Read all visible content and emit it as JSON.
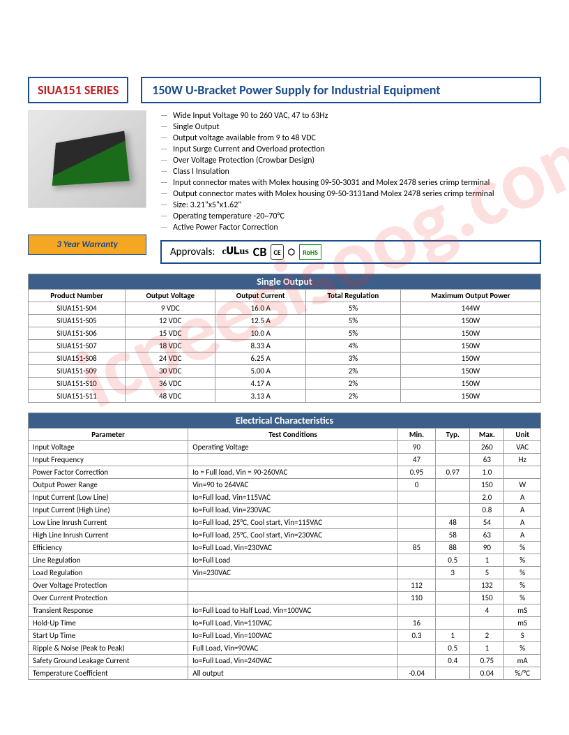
{
  "watermark": "icpeesisoog.com",
  "header": {
    "series": "SIUA151 SERIES",
    "title": "150W U-Bracket Power Supply for Industrial Equipment",
    "warranty": "3 Year Warranty",
    "approvals_label": "Approvals:",
    "certs": {
      "ul": "c𝐔𝐋us",
      "cb": "CB",
      "ce": "CE",
      "rohs": "RoHS"
    }
  },
  "features": [
    "Wide Input Voltage 90 to 260 VAC, 47 to 63Hz",
    "Single Output",
    "Output voltage available from 9 to 48 VDC",
    "Input Surge Current and Overload protection",
    "Over Voltage Protection (Crowbar Design)",
    "Class I Insulation",
    "Input connector mates with Molex housing 09-50-3031 and Molex 2478 series crimp terminal",
    "Output connector mates with Molex housing 09-50-3131and Molex 2478 series crimp terminal",
    "Size: 3.21\"x5\"x1.62\"",
    "Operating temperature -20~70°C",
    "Active Power Factor Correction"
  ],
  "single_output": {
    "title": "Single Output",
    "columns": [
      "Product Number",
      "Output Voltage",
      "Output Current",
      "Total Regulation",
      "Maximum Output Power"
    ],
    "rows": [
      [
        "SIUA151-S04",
        "9 VDC",
        "16.0 A",
        "5%",
        "144W"
      ],
      [
        "SIUA151-S05",
        "12 VDC",
        "12.5 A",
        "5%",
        "150W"
      ],
      [
        "SIUA151-S06",
        "15 VDC",
        "10.0 A",
        "5%",
        "150W"
      ],
      [
        "SIUA151-S07",
        "18 VDC",
        "8.33 A",
        "4%",
        "150W"
      ],
      [
        "SIUA151-S08",
        "24 VDC",
        "6.25 A",
        "3%",
        "150W"
      ],
      [
        "SIUA151-S09",
        "30 VDC",
        "5.00 A",
        "2%",
        "150W"
      ],
      [
        "SIUA151-S10",
        "36 VDC",
        "4.17 A",
        "2%",
        "150W"
      ],
      [
        "SIUA151-S11",
        "48 VDC",
        "3.13 A",
        "2%",
        "150W"
      ]
    ]
  },
  "electrical": {
    "title": "Electrical Characteristics",
    "columns": [
      "Parameter",
      "Test Conditions",
      "Min.",
      "Typ.",
      "Max.",
      "Unit"
    ],
    "rows": [
      [
        "Input Voltage",
        "Operating Voltage",
        "90",
        "",
        "260",
        "VAC"
      ],
      [
        "Input Frequency",
        "",
        "47",
        "",
        "63",
        "Hz"
      ],
      [
        "Power Factor Correction",
        "Io = Full load, Vin = 90-260VAC",
        "0.95",
        "0.97",
        "1.0",
        ""
      ],
      [
        "Output Power Range",
        "Vin=90 to 264VAC",
        "0",
        "",
        "150",
        "W"
      ],
      [
        "Input Current (Low Line)",
        "Io=Full load, Vin=115VAC",
        "",
        "",
        "2.0",
        "A"
      ],
      [
        "Input Current (High Line)",
        "Io=Full load, Vin=230VAC",
        "",
        "",
        "0.8",
        "A"
      ],
      [
        "Low Line Inrush Current",
        "Io=Full load, 25°C, Cool start, Vin=115VAC",
        "",
        "48",
        "54",
        "A"
      ],
      [
        "High Line Inrush Current",
        "Io=Full load, 25°C, Cool start, Vin=230VAC",
        "",
        "58",
        "63",
        "A"
      ],
      [
        "Efficiency",
        "Io=Full Load, Vin=230VAC",
        "85",
        "88",
        "90",
        "%"
      ],
      [
        "Line Regulation",
        "Io=Full Load",
        "",
        "0.5",
        "1",
        "%"
      ],
      [
        "Load Regulation",
        "Vin=230VAC",
        "",
        "3",
        "5",
        "%"
      ],
      [
        "Over Voltage Protection",
        "",
        "112",
        "",
        "132",
        "%"
      ],
      [
        "Over Current Protection",
        "",
        "110",
        "",
        "150",
        "%"
      ],
      [
        "Transient Response",
        "Io=Full Load to Half Load, Vin=100VAC",
        "",
        "",
        "4",
        "mS"
      ],
      [
        "Hold-Up Time",
        "Io=Full Load, Vin=110VAC",
        "16",
        "",
        "",
        "mS"
      ],
      [
        "Start Up Time",
        "Io=Full Load, Vin=100VAC",
        "0.3",
        "1",
        "2",
        "S"
      ],
      [
        "Ripple & Noise (Peak to Peak)",
        "Full Load, Vin=90VAC",
        "",
        "0.5",
        "1",
        "%"
      ],
      [
        "Safety Ground Leakage Current",
        "Io=Full Load, Vin=240VAC",
        "",
        "0.4",
        "0.75",
        "mA"
      ],
      [
        "Temperature Coefficient",
        "All output",
        "-0.04",
        "",
        "0.04",
        "%/°C"
      ]
    ]
  },
  "style": {
    "brand_blue": "#1a4b8c",
    "brand_red": "#c41e1e",
    "warranty_bg": "#f5a623",
    "table_header_bg": "#3b5f8a",
    "border_gray": "#999999"
  }
}
